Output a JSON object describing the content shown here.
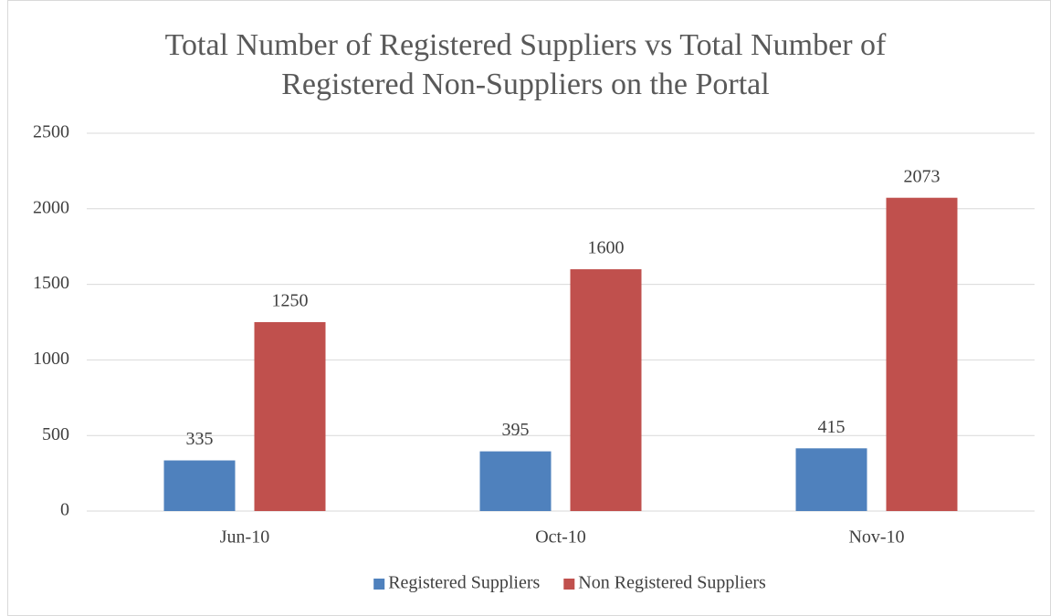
{
  "chart_data": {
    "type": "bar",
    "title": "Total Number of Registered Suppliers vs Total Number of Registered Non-Suppliers on the Portal",
    "categories": [
      "Jun-10",
      "Oct-10",
      "Nov-10"
    ],
    "series": [
      {
        "name": "Registered Suppliers",
        "color": "#4f81bd",
        "values": [
          335,
          395,
          415
        ]
      },
      {
        "name": "Non Registered Suppliers",
        "color": "#c0504d",
        "values": [
          1250,
          1600,
          2073
        ]
      }
    ],
    "ylim": [
      0,
      2500
    ],
    "yticks": [
      0,
      500,
      1000,
      1500,
      2000,
      2500
    ],
    "grid": true,
    "legend": "bottom"
  }
}
